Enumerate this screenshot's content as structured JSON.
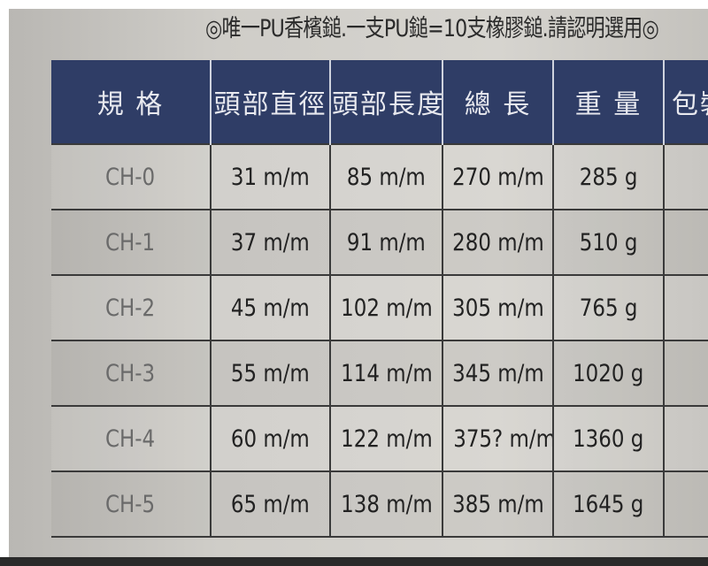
{
  "notice": "◎唯一PU香檳鎚.一支PU鎚=10支橡膠鎚.請認明選用◎",
  "table": {
    "headers": [
      "規 格",
      "頭部直徑",
      "頭部長度",
      "總 長",
      "重 量",
      "包裝"
    ],
    "rows": [
      [
        "CH-0",
        "31 m/m",
        "85 m/m",
        "270 m/m",
        "285 g",
        ""
      ],
      [
        "CH-1",
        "37 m/m",
        "91 m/m",
        "280 m/m",
        "510 g",
        ""
      ],
      [
        "CH-2",
        "45 m/m",
        "102 m/m",
        "305 m/m",
        "765 g",
        ""
      ],
      [
        "CH-3",
        "55 m/m",
        "114 m/m",
        "345 m/m",
        "1020 g",
        ""
      ],
      [
        "CH-4",
        "60 m/m",
        "122 m/m",
        "375? m/m",
        "1360 g",
        ""
      ],
      [
        "CH-5",
        "65 m/m",
        "138 m/m",
        "385 m/m",
        "1645 g",
        ""
      ]
    ]
  },
  "colors": {
    "header_bg": "#2f3d66",
    "header_text": "#e8e9ef",
    "paper": "#d0cec9"
  }
}
